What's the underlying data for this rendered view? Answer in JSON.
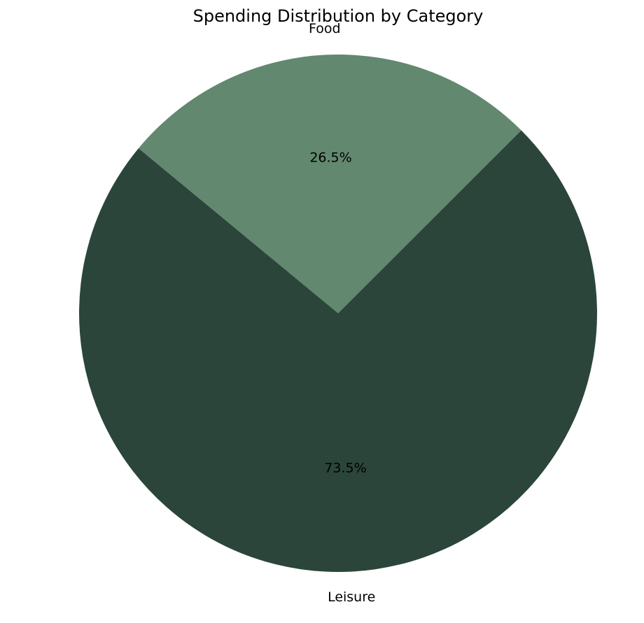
{
  "chart_data": {
    "type": "pie",
    "title": "Spending Distribution by Category",
    "categories": [
      "Food",
      "Leisure"
    ],
    "values": [
      26.5,
      73.5
    ],
    "value_labels": [
      "26.5%",
      "73.5%"
    ],
    "colors": [
      "#62886f",
      "#2b453b"
    ],
    "legend": "none"
  }
}
